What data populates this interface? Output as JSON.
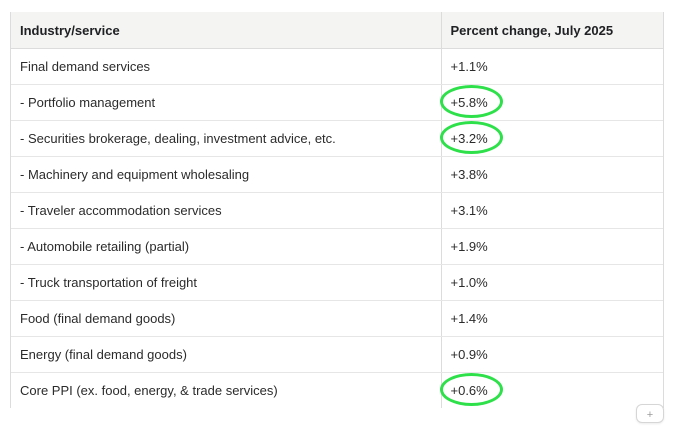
{
  "table": {
    "headers": [
      "Industry/service",
      "Percent change, July 2025"
    ],
    "rows": [
      {
        "industry": "Final demand services",
        "change": "+1.1%",
        "circled": false
      },
      {
        "industry": "- Portfolio management",
        "change": "+5.8%",
        "circled": true
      },
      {
        "industry": "- Securities brokerage, dealing, investment advice, etc.",
        "change": "+3.2%",
        "circled": true
      },
      {
        "industry": "- Machinery and equipment wholesaling",
        "change": "+3.8%",
        "circled": false
      },
      {
        "industry": "- Traveler accommodation services",
        "change": "+3.1%",
        "circled": false
      },
      {
        "industry": "- Automobile retailing (partial)",
        "change": "+1.9%",
        "circled": false
      },
      {
        "industry": "- Truck transportation of freight",
        "change": "+1.0%",
        "circled": false
      },
      {
        "industry": "Food (final demand goods)",
        "change": "+1.4%",
        "circled": false
      },
      {
        "industry": "Energy (final demand goods)",
        "change": "+0.9%",
        "circled": false
      },
      {
        "industry": "Core PPI (ex. food, energy, & trade services)",
        "change": "+0.6%",
        "circled": true
      }
    ]
  },
  "colors": {
    "header_bg": "#f4f4f2",
    "highlight_circle": "#2ee04a",
    "border": "#dcdcdc"
  },
  "copy_button": {
    "icon": "plus-icon",
    "glyph": "+"
  }
}
